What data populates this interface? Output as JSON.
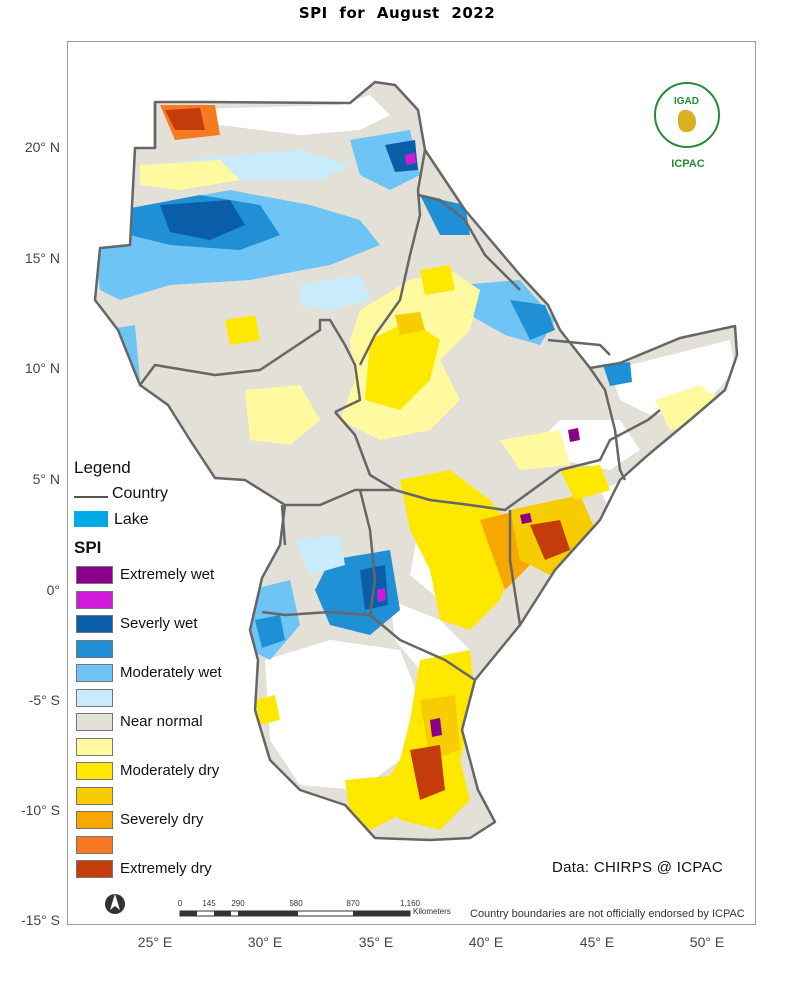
{
  "title": "SPI   for  August 2022",
  "axes": {
    "latitude": [
      "20° N",
      "15° N",
      "10° N",
      "5° N",
      "0°",
      "-5° S",
      "-10° S",
      "-15° S"
    ],
    "longitude": [
      "25° E",
      "30° E",
      "35° E",
      "40° E",
      "45° E",
      "50° E"
    ]
  },
  "legend": {
    "title": "Legend",
    "country_label": "Country",
    "lake_label": "Lake",
    "lake_color": "#00a9e6",
    "spi_title": "SPI",
    "spi_classes": [
      {
        "label": "Extremely wet",
        "color": "#8b008b"
      },
      {
        "label": "",
        "color": "#d11ad9"
      },
      {
        "label": "Severly wet",
        "color": "#0a5ea8"
      },
      {
        "label": "",
        "color": "#1f8fd6"
      },
      {
        "label": "Moderately wet",
        "color": "#6ec4f5"
      },
      {
        "label": "",
        "color": "#c8ecfc"
      },
      {
        "label": "Near normal",
        "color": "#e3e0d8"
      },
      {
        "label": "",
        "color": "#fffaa0"
      },
      {
        "label": "Moderately dry",
        "color": "#ffe800"
      },
      {
        "label": "",
        "color": "#f7cc00"
      },
      {
        "label": "Severely dry",
        "color": "#f7a800"
      },
      {
        "label": "",
        "color": "#f57a22"
      },
      {
        "label": "Extremely dry",
        "color": "#c43c0a"
      }
    ]
  },
  "scale_bar": {
    "ticks": [
      "0",
      "145",
      "290",
      "580",
      "870",
      "1,160"
    ],
    "unit": "Kilometers"
  },
  "credit": "Data: CHIRPS @ ICPAC",
  "disclaimer": "Country boundaries are not officially endorsed by ICPAC",
  "logo": {
    "top_text": "IGAD",
    "name": "ICPAC",
    "color": "#2a8a3a"
  },
  "north_arrow_icon": "north-arrow-icon"
}
